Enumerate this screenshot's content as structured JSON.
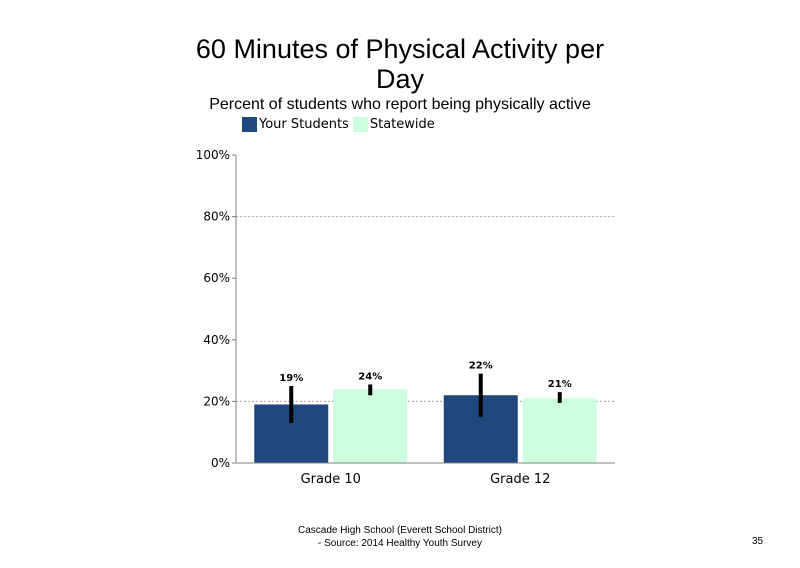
{
  "chart_data": {
    "type": "bar",
    "title_line1": "60 Minutes of Physical Activity per",
    "title_line2": "Day",
    "subtitle": "Percent of students  who report being physically active",
    "categories": [
      "Grade 10",
      "Grade 12"
    ],
    "series": [
      {
        "name": "Your Students",
        "color": "#1f497d",
        "values": [
          19,
          22
        ],
        "labels": [
          "19%",
          "22%"
        ],
        "error": [
          [
            13,
            25
          ],
          [
            15,
            29
          ]
        ]
      },
      {
        "name": "Statewide",
        "color": "#ccffdd",
        "values": [
          24,
          21
        ],
        "labels": [
          "24%",
          "21%"
        ],
        "error": [
          [
            22,
            25.5
          ],
          [
            19.5,
            23
          ]
        ]
      }
    ],
    "ylim": [
      0,
      100
    ],
    "yticks": [
      0,
      20,
      40,
      60,
      80,
      100
    ],
    "ytick_labels": [
      "0%",
      "20%",
      "40%",
      "60%",
      "80%",
      "100%"
    ],
    "gridlines": [
      20,
      80
    ],
    "legend_position": "top"
  },
  "footer": {
    "line1": "Cascade High School (Everett School District)",
    "line2": "- Source: 2014 Healthy  Youth Survey"
  },
  "page_number": "35"
}
